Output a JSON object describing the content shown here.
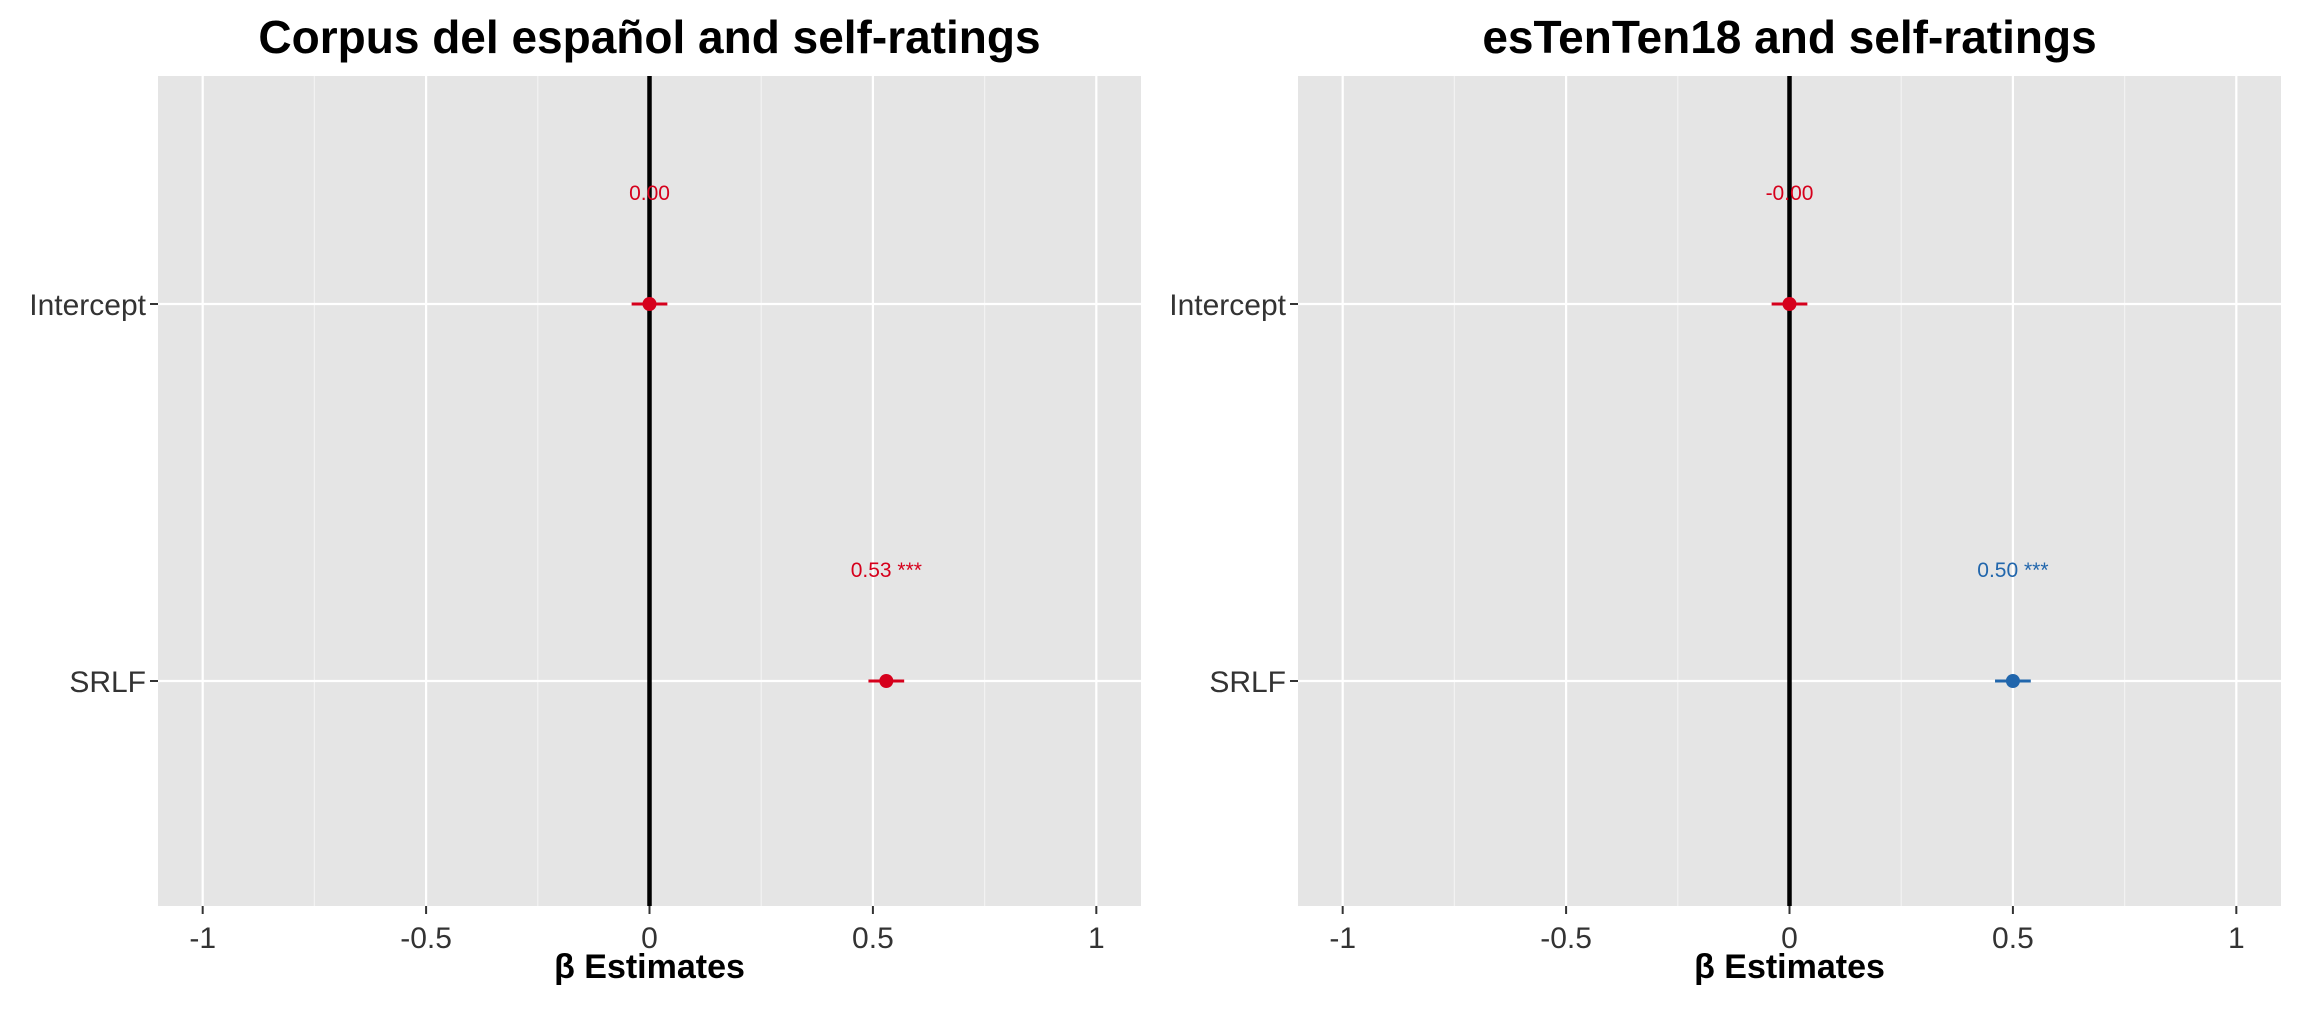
{
  "colors": {
    "panel_bg": "#e5e5e5",
    "grid_major": "#ffffff",
    "grid_minor": "#f2f2f2",
    "zero_line": "#000000",
    "axis_text": "#333333",
    "title_text": "#000000",
    "significant_positive": "#2166ac",
    "neutral_red": "#d6001c"
  },
  "chart_data": [
    {
      "type": "scatter",
      "title": "Corpus del español and self-ratings",
      "xlabel": "β Estimates",
      "ylabel": "",
      "xlim": [
        -1.1,
        1.1
      ],
      "x_ticks": [
        -1,
        -0.5,
        0,
        0.5,
        1
      ],
      "x_tick_labels": [
        "-1",
        "-0.5",
        "0",
        "0.5",
        "1"
      ],
      "categories": [
        "Intercept",
        "SRLF"
      ],
      "grid": true,
      "reference_line_x": 0,
      "points": [
        {
          "term": "Intercept",
          "estimate": 0.0,
          "ci_low": -0.04,
          "ci_high": 0.04,
          "label": "0.00",
          "color": "#d6001c"
        },
        {
          "term": "SRLF",
          "estimate": 0.53,
          "ci_low": 0.49,
          "ci_high": 0.57,
          "label": "0.53 ***",
          "color": "#d6001c"
        }
      ]
    },
    {
      "type": "scatter",
      "title": "esTenTen18 and self-ratings",
      "xlabel": "β Estimates",
      "ylabel": "",
      "xlim": [
        -1.1,
        1.1
      ],
      "x_ticks": [
        -1,
        -0.5,
        0,
        0.5,
        1
      ],
      "x_tick_labels": [
        "-1",
        "-0.5",
        "0",
        "0.5",
        "1"
      ],
      "categories": [
        "Intercept",
        "SRLF"
      ],
      "grid": true,
      "reference_line_x": 0,
      "points": [
        {
          "term": "Intercept",
          "estimate": 0.0,
          "ci_low": -0.04,
          "ci_high": 0.04,
          "label": "-0.00",
          "color": "#d6001c"
        },
        {
          "term": "SRLF",
          "estimate": 0.5,
          "ci_low": 0.46,
          "ci_high": 0.54,
          "label": "0.50 ***",
          "color": "#2166ac"
        }
      ]
    }
  ]
}
